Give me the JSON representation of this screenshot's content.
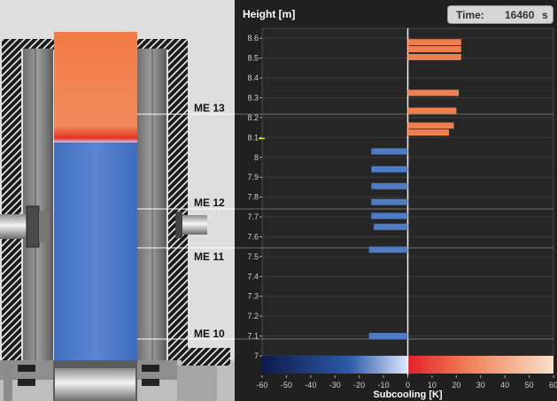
{
  "colors": {
    "hot": "#ee7f50",
    "cold": "#4f7cc4",
    "panel_bg": "#202020"
  },
  "header": {
    "height_label": "Height [m]",
    "time_label": "Time:",
    "time_value": "16460",
    "time_unit": "s"
  },
  "vessel": {
    "markers": [
      "ME 13",
      "ME 12",
      "ME 11",
      "ME 10"
    ]
  },
  "chart_data": {
    "type": "bar",
    "orientation": "horizontal",
    "ylabel": "Height [m]",
    "xlabel": "Subcooling [K]",
    "xlim": [
      -60,
      60
    ],
    "ylim": [
      7,
      8.65
    ],
    "xticks": [
      -60,
      -50,
      -40,
      -30,
      -20,
      -10,
      0,
      10,
      20,
      30,
      40,
      50,
      60
    ],
    "yticks": [
      7,
      7.1,
      7.2,
      7.3,
      7.4,
      7.5,
      7.6,
      7.7,
      7.8,
      7.9,
      8,
      8.1,
      8.2,
      8.3,
      8.4,
      8.5,
      8.6
    ],
    "grid": true,
    "bars": [
      {
        "height": 8.58,
        "value": 22
      },
      {
        "height": 8.545,
        "value": 22
      },
      {
        "height": 8.505,
        "value": 22
      },
      {
        "height": 8.325,
        "value": 21
      },
      {
        "height": 8.235,
        "value": 20
      },
      {
        "height": 8.16,
        "value": 19
      },
      {
        "height": 8.125,
        "value": 17
      },
      {
        "height": 8.03,
        "value": -15
      },
      {
        "height": 7.94,
        "value": -15
      },
      {
        "height": 7.855,
        "value": -15
      },
      {
        "height": 7.775,
        "value": -15
      },
      {
        "height": 7.705,
        "value": -15
      },
      {
        "height": 7.65,
        "value": -14
      },
      {
        "height": 7.535,
        "value": -16
      },
      {
        "height": 7.1,
        "value": -16
      }
    ]
  }
}
